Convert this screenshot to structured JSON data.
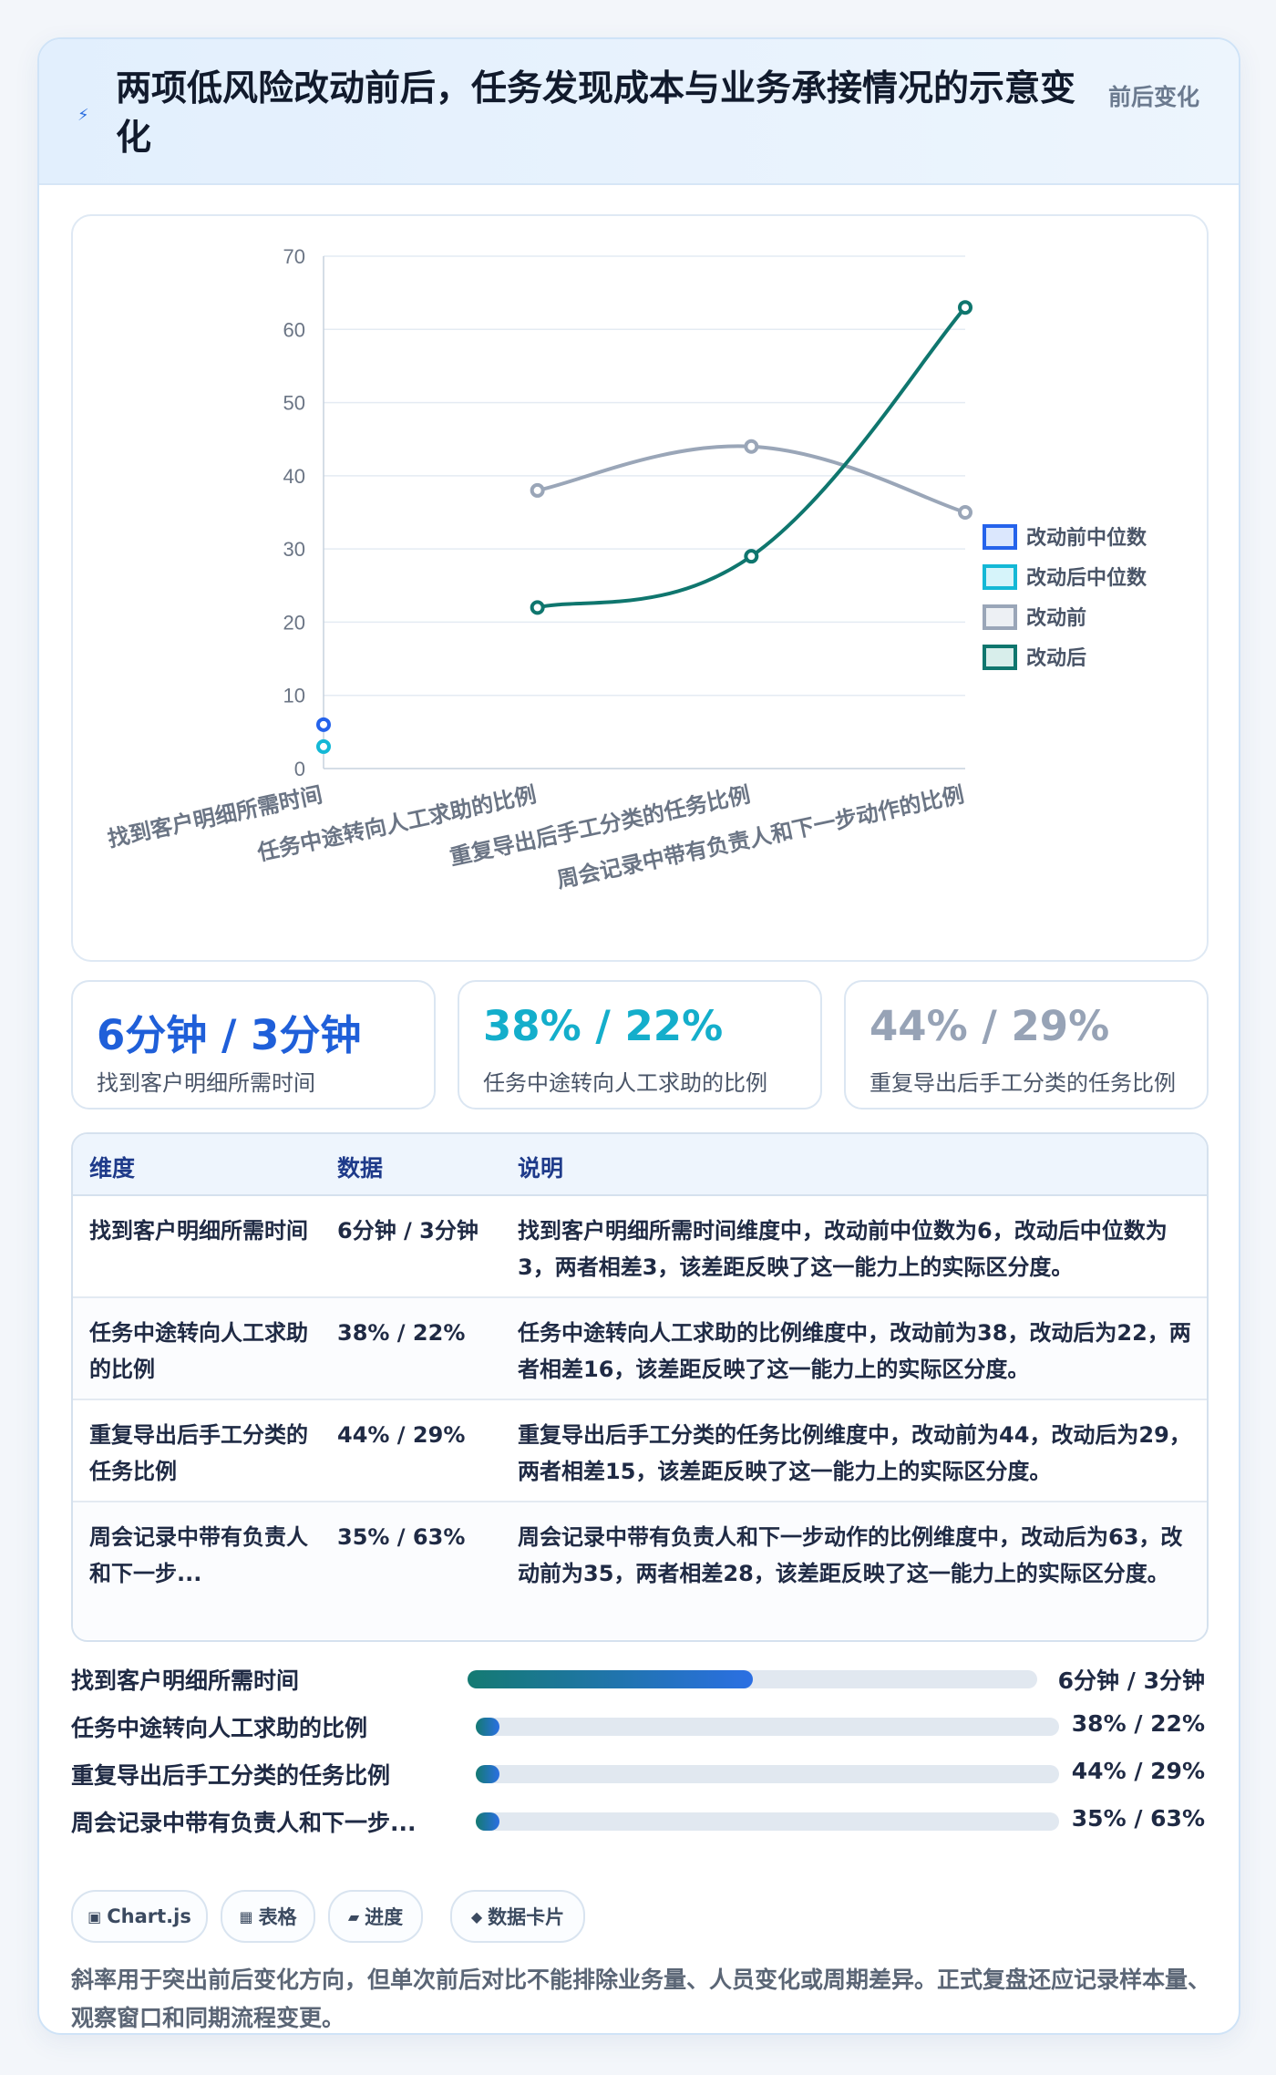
{
  "header": {
    "icon": "lightning-icon",
    "title": "两项低风险改动前后，任务发现成本与业务承接情况的示意变化",
    "badge": "前后变化"
  },
  "chart_data": {
    "type": "line",
    "categories": [
      "找到客户明细所需时间",
      "任务中途转向人工求助的比例",
      "重复导出后手工分类的任务比例",
      "周会记录中带有负责人和下一步动作的比例"
    ],
    "series": [
      {
        "name": "改动前中位数",
        "values": [
          6,
          null,
          null,
          null
        ],
        "color": "#2563eb",
        "fill": "#dbe7fd"
      },
      {
        "name": "改动后中位数",
        "values": [
          3,
          null,
          null,
          null
        ],
        "color": "#14b8d6",
        "fill": "#d6f4fa"
      },
      {
        "name": "改动前",
        "values": [
          null,
          38,
          44,
          35
        ],
        "color": "#9aa6b8",
        "fill": "#edf0f4"
      },
      {
        "name": "改动后",
        "values": [
          null,
          22,
          29,
          63
        ],
        "color": "#0f766e",
        "fill": "#d8eeeb"
      }
    ],
    "ylim": [
      0,
      70
    ],
    "yticks": [
      0,
      10,
      20,
      30,
      40,
      50,
      60,
      70
    ],
    "grid": true,
    "legend": "right",
    "title": "",
    "xlabel": "",
    "ylabel": ""
  },
  "kpis": [
    {
      "value": "6分钟 / 3分钟",
      "label": "找到客户明细所需时间",
      "color": "#1f5fd9"
    },
    {
      "value": "38% / 22%",
      "label": "任务中途转向人工求助的比例",
      "color": "#14aecb"
    },
    {
      "value": "44% / 29%",
      "label": "重复导出后手工分类的任务比例",
      "color": "#97a3b6"
    }
  ],
  "table": {
    "headers": [
      "维度",
      "数据",
      "说明"
    ],
    "rows": [
      {
        "dim": "找到客户明细所需时间",
        "val": "6分钟 / 3分钟",
        "desc": "找到客户明细所需时间维度中，改动前中位数为6，改动后中位数为3，两者相差3，该差距反映了这一能力上的实际区分度。"
      },
      {
        "dim": "任务中途转向人工求助的比例",
        "val": "38% / 22%",
        "desc": "任务中途转向人工求助的比例维度中，改动前为38，改动后为22，两者相差16，该差距反映了这一能力上的实际区分度。"
      },
      {
        "dim": "重复导出后手工分类的任务比例",
        "val": "44% / 29%",
        "desc": "重复导出后手工分类的任务比例维度中，改动前为44，改动后为29，两者相差15，该差距反映了这一能力上的实际区分度。"
      },
      {
        "dim": "周会记录中带有负责人和下一步...",
        "val": "35% / 63%",
        "desc": "周会记录中带有负责人和下一步动作的比例维度中，改动后为63，改动前为35，两者相差28，该差距反映了这一能力上的实际区分度。"
      }
    ]
  },
  "bars": [
    {
      "label": "找到客户明细所需时间",
      "value": "6分钟 / 3分钟",
      "progress": 0.5
    },
    {
      "label": "任务中途转向人工求助的比例",
      "value": "38% / 22%",
      "progress": 0.04
    },
    {
      "label": "重复导出后手工分类的任务比例",
      "value": "44% / 29%",
      "progress": 0.04
    },
    {
      "label": "周会记录中带有负责人和下一步...",
      "value": "35% / 63%",
      "progress": 0.04
    }
  ],
  "chips": [
    {
      "icon": "chart-icon",
      "glyph": "▣",
      "label": "Chart.js"
    },
    {
      "icon": "table-icon",
      "glyph": "▦",
      "label": "表格"
    },
    {
      "icon": "progress-icon",
      "glyph": "▰",
      "label": "进度"
    },
    {
      "icon": "card-icon",
      "glyph": "◆",
      "label": "数据卡片"
    }
  ],
  "note": "斜率用于突出前后变化方向，但单次前后对比不能排除业务量、人员变化或周期差异。正式复盘还应记录样本量、观察窗口和同期流程变更。"
}
